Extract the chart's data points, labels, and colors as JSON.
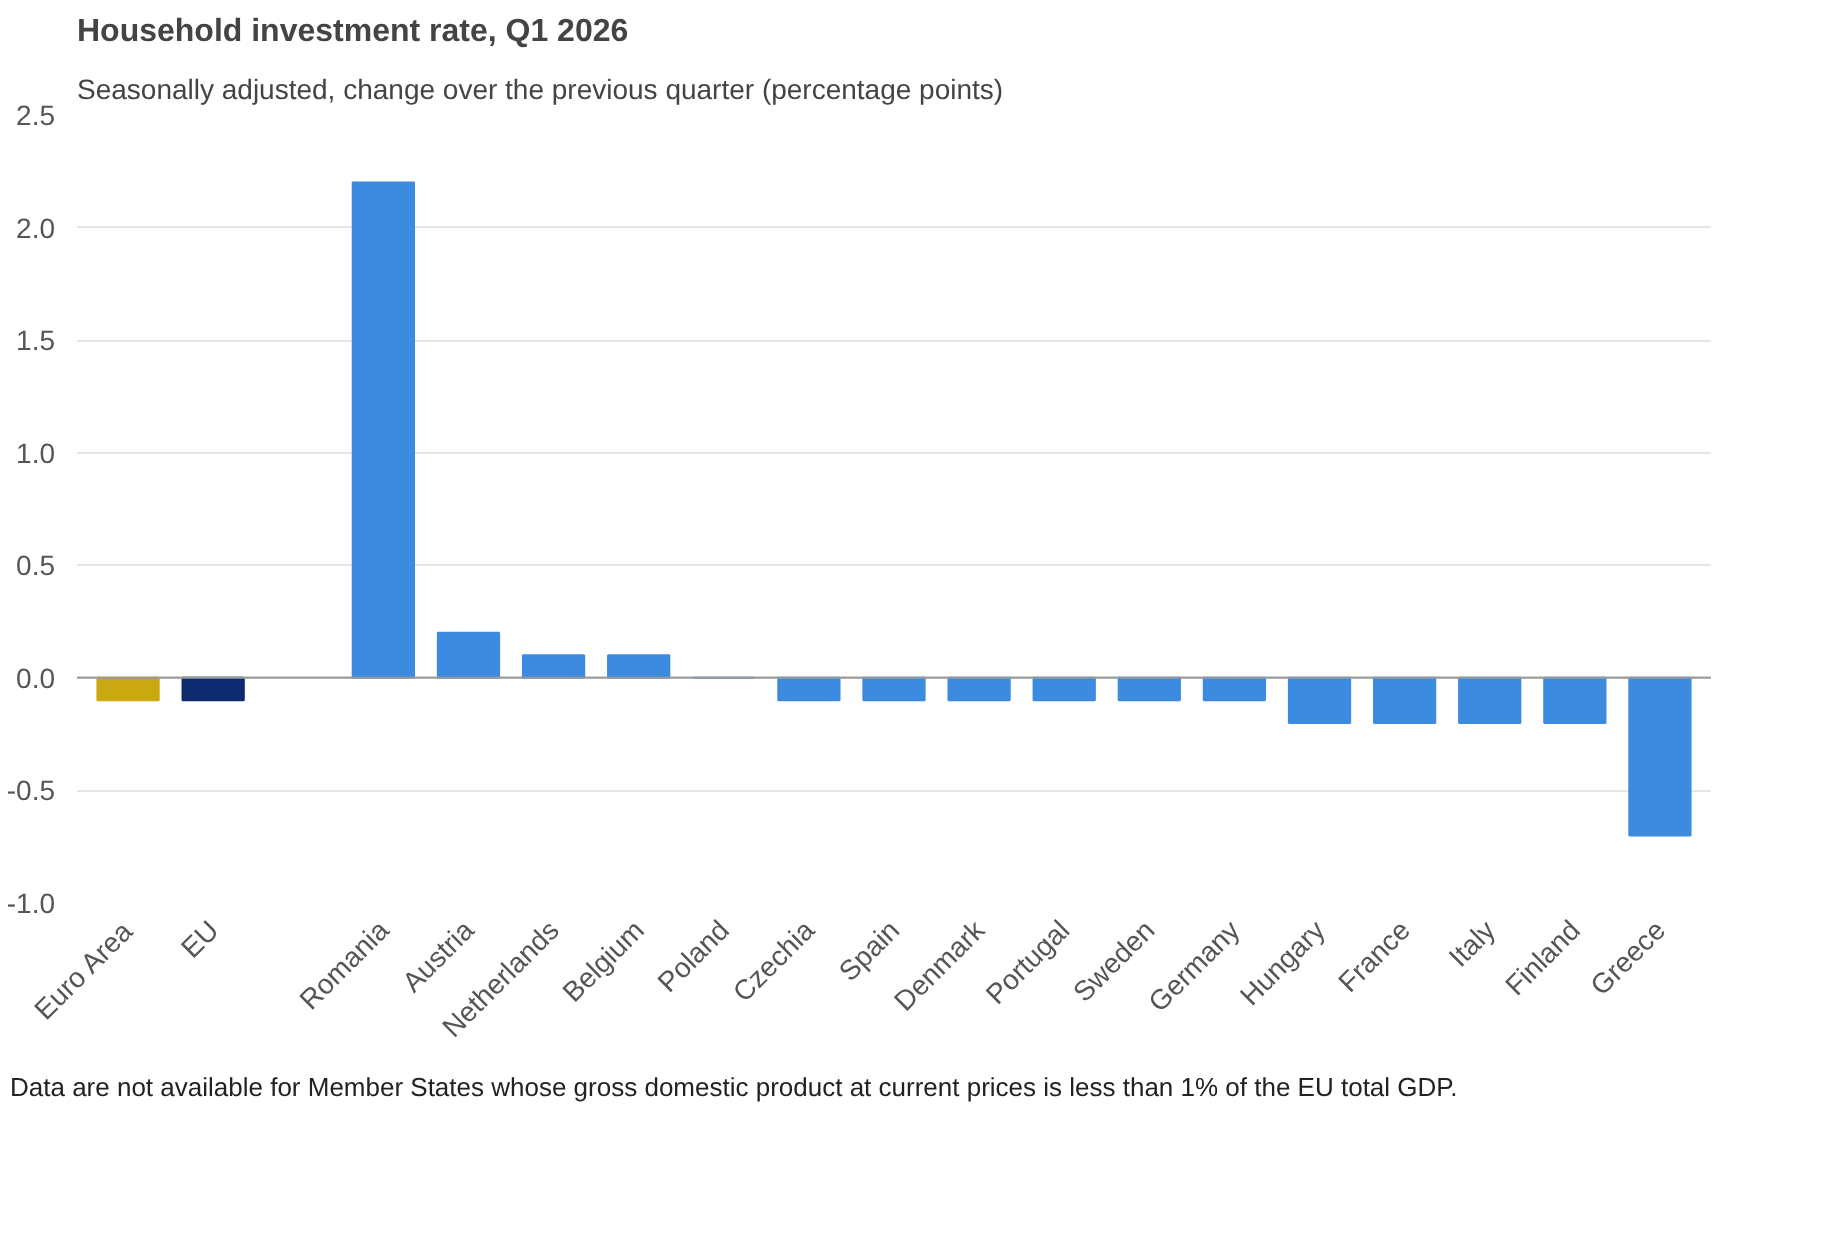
{
  "chart_data": {
    "type": "bar",
    "title": "Household investment rate, Q1 2026",
    "subtitle": "Seasonally adjusted, change over the previous quarter (percentage points)",
    "categories": [
      "Euro Area",
      "EU",
      null,
      "Romania",
      "Austria",
      "Netherlands",
      "Belgium",
      "Poland",
      "Czechia",
      "Spain",
      "Denmark",
      "Portugal",
      "Sweden",
      "Germany",
      "Hungary",
      "France",
      "Italy",
      "Finland",
      "Greece"
    ],
    "values": [
      -0.1,
      -0.1,
      null,
      2.2,
      0.2,
      0.1,
      0.1,
      0,
      -0.1,
      -0.1,
      -0.1,
      -0.1,
      -0.1,
      -0.1,
      -0.2,
      -0.2,
      -0.2,
      -0.2,
      -0.7
    ],
    "colors": [
      "#c9a812",
      "#0e2a6e",
      null,
      "#3d8be0",
      "#3d8be0",
      "#3d8be0",
      "#3d8be0",
      "#3d8be0",
      "#3d8be0",
      "#3d8be0",
      "#3d8be0",
      "#3d8be0",
      "#3d8be0",
      "#3d8be0",
      "#3d8be0",
      "#3d8be0",
      "#3d8be0",
      "#3d8be0",
      "#3d8be0"
    ],
    "ylim": [
      -1,
      2.5
    ],
    "yticks": [
      {
        "value": -1,
        "label": "-1.0"
      },
      {
        "value": -0.5,
        "label": "-0.5"
      },
      {
        "value": 0,
        "label": "0.0"
      },
      {
        "value": 0.5,
        "label": "0.5"
      },
      {
        "value": 1,
        "label": "1.0"
      },
      {
        "value": 1.5,
        "label": "1.5"
      },
      {
        "value": 2,
        "label": "2.0"
      },
      {
        "value": 2.5,
        "label": "2.5"
      }
    ],
    "grid": "y",
    "annotations": [
      "Data are not available for Member States whose gross domestic product at current prices is less than 1% of the EU total GDP."
    ]
  }
}
